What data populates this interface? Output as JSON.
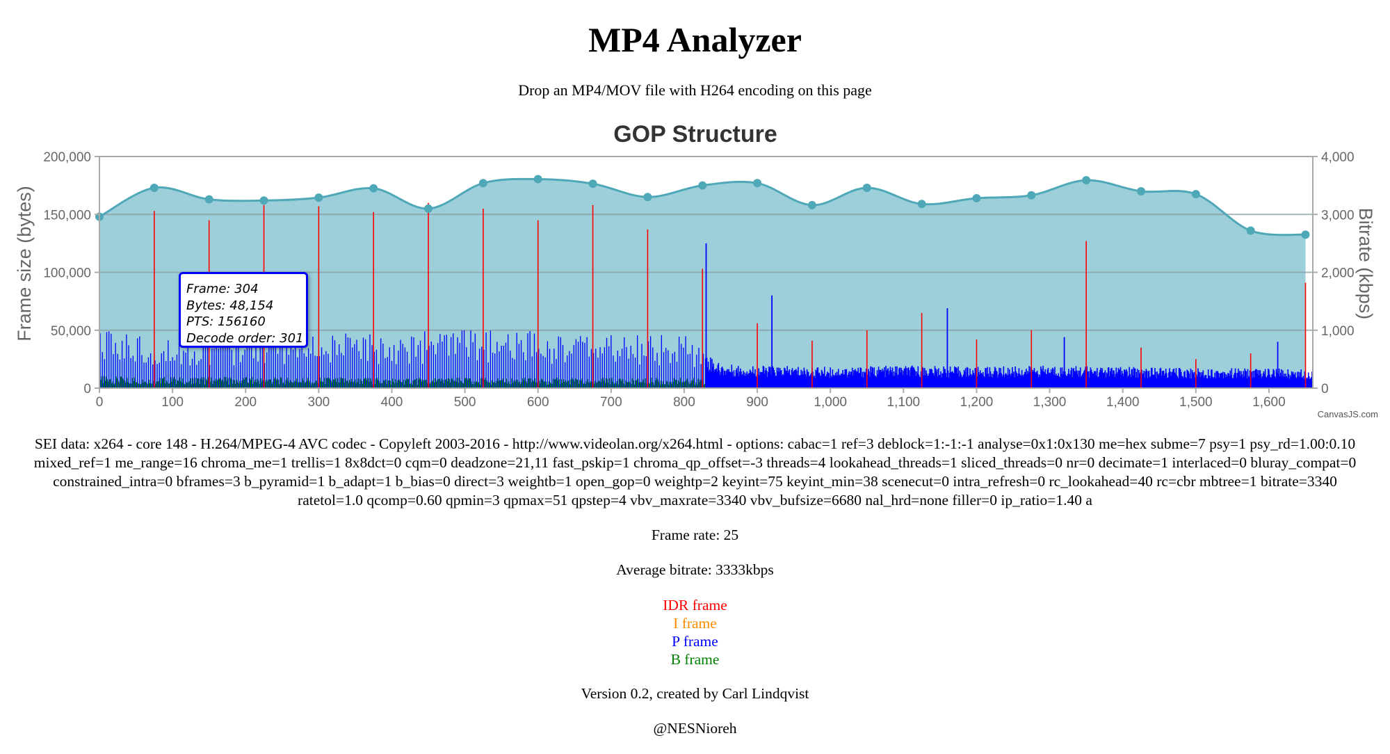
{
  "header": {
    "title": "MP4 Analyzer",
    "subtitle": "Drop an MP4/MOV file with H264 encoding on this page"
  },
  "chart_data": {
    "type": "bar",
    "title": "GOP Structure",
    "ylabel": "Frame size (bytes)",
    "y2label": "Bitrate (kbps)",
    "xlim": [
      0,
      1660
    ],
    "ylim": [
      0,
      200000
    ],
    "y2lim": [
      0,
      4000
    ],
    "x_ticks": [
      0,
      100,
      200,
      300,
      400,
      500,
      600,
      700,
      800,
      900,
      1000,
      1100,
      1200,
      1300,
      1400,
      1500,
      1600
    ],
    "x_tick_labels": [
      "0",
      "100",
      "200",
      "300",
      "400",
      "500",
      "600",
      "700",
      "800",
      "900",
      "1,000",
      "1,100",
      "1,200",
      "1,300",
      "1,400",
      "1,500",
      "1,600"
    ],
    "y_tick_labels": [
      "0",
      "50,000",
      "100,000",
      "150,000",
      "200,000"
    ],
    "y2_tick_labels": [
      "0",
      "1,000",
      "2,000",
      "3,000",
      "4,000"
    ],
    "grid": true,
    "watermark": "CanvasJS.com",
    "colors": {
      "idr": "#ff0000",
      "i": "#ff8c00",
      "p": "#0000ff",
      "b": "#008000",
      "bitrate_line": "#4fa8b8",
      "bitrate_fill": "#9dcfda"
    },
    "series": [
      {
        "name": "IDR frame",
        "kind": "bar",
        "points": [
          {
            "x": 75,
            "y": 153000
          },
          {
            "x": 150,
            "y": 145000
          },
          {
            "x": 225,
            "y": 158000
          },
          {
            "x": 300,
            "y": 157000
          },
          {
            "x": 375,
            "y": 152000
          },
          {
            "x": 450,
            "y": 160000
          },
          {
            "x": 525,
            "y": 155000
          },
          {
            "x": 600,
            "y": 145000
          },
          {
            "x": 675,
            "y": 158000
          },
          {
            "x": 750,
            "y": 137000
          },
          {
            "x": 825,
            "y": 103000
          },
          {
            "x": 900,
            "y": 56000
          },
          {
            "x": 975,
            "y": 41000
          },
          {
            "x": 1050,
            "y": 50000
          },
          {
            "x": 1125,
            "y": 65000
          },
          {
            "x": 1200,
            "y": 42000
          },
          {
            "x": 1275,
            "y": 50000
          },
          {
            "x": 1350,
            "y": 127000
          },
          {
            "x": 1425,
            "y": 35000
          },
          {
            "x": 1500,
            "y": 25000
          },
          {
            "x": 1575,
            "y": 30000
          },
          {
            "x": 1650,
            "y": 91000
          }
        ]
      },
      {
        "name": "P frame",
        "kind": "bar",
        "envelope": [
          {
            "x": 0,
            "y": 45000
          },
          {
            "x": 100,
            "y": 43000
          },
          {
            "x": 200,
            "y": 44000
          },
          {
            "x": 300,
            "y": 43000
          },
          {
            "x": 400,
            "y": 44000
          },
          {
            "x": 500,
            "y": 46000
          },
          {
            "x": 600,
            "y": 45000
          },
          {
            "x": 700,
            "y": 44000
          },
          {
            "x": 800,
            "y": 42000
          },
          {
            "x": 850,
            "y": 18000
          },
          {
            "x": 900,
            "y": 17000
          },
          {
            "x": 1000,
            "y": 16000
          },
          {
            "x": 1100,
            "y": 17000
          },
          {
            "x": 1200,
            "y": 16000
          },
          {
            "x": 1300,
            "y": 17000
          },
          {
            "x": 1400,
            "y": 16000
          },
          {
            "x": 1500,
            "y": 15000
          },
          {
            "x": 1600,
            "y": 15000
          },
          {
            "x": 1660,
            "y": 14000
          }
        ],
        "peaks": [
          {
            "x": 830,
            "y": 125000
          },
          {
            "x": 920,
            "y": 80000
          },
          {
            "x": 1160,
            "y": 69000
          },
          {
            "x": 1320,
            "y": 44000
          },
          {
            "x": 1612,
            "y": 40000
          }
        ]
      },
      {
        "name": "B frame",
        "kind": "bar",
        "envelope": [
          {
            "x": 0,
            "y": 8000
          },
          {
            "x": 400,
            "y": 7000
          },
          {
            "x": 800,
            "y": 7000
          },
          {
            "x": 1200,
            "y": 6000
          },
          {
            "x": 1660,
            "y": 5000
          }
        ]
      },
      {
        "name": "Bitrate",
        "kind": "spline-area",
        "axis": "y2",
        "points": [
          {
            "x": 0,
            "y": 2960
          },
          {
            "x": 75,
            "y": 3460
          },
          {
            "x": 150,
            "y": 3260
          },
          {
            "x": 225,
            "y": 3240
          },
          {
            "x": 300,
            "y": 3290
          },
          {
            "x": 375,
            "y": 3450
          },
          {
            "x": 450,
            "y": 3100
          },
          {
            "x": 525,
            "y": 3540
          },
          {
            "x": 600,
            "y": 3610
          },
          {
            "x": 675,
            "y": 3530
          },
          {
            "x": 750,
            "y": 3300
          },
          {
            "x": 825,
            "y": 3500
          },
          {
            "x": 900,
            "y": 3540
          },
          {
            "x": 975,
            "y": 3160
          },
          {
            "x": 1050,
            "y": 3460
          },
          {
            "x": 1125,
            "y": 3180
          },
          {
            "x": 1200,
            "y": 3280
          },
          {
            "x": 1275,
            "y": 3330
          },
          {
            "x": 1350,
            "y": 3590
          },
          {
            "x": 1425,
            "y": 3400
          },
          {
            "x": 1500,
            "y": 3350
          },
          {
            "x": 1575,
            "y": 2720
          },
          {
            "x": 1650,
            "y": 2650
          }
        ]
      }
    ],
    "tooltip": {
      "frame_label": "Frame: 304",
      "bytes_label": "Bytes: 48,154",
      "pts_label": "PTS: 156160",
      "decode_label": "Decode order: 301"
    }
  },
  "info": {
    "sei": "SEI data: x264 - core 148 - H.264/MPEG-4 AVC codec - Copyleft 2003-2016 - http://www.videolan.org/x264.html - options: cabac=1 ref=3 deblock=1:-1:-1 analyse=0x1:0x130 me=hex subme=7 psy=1 psy_rd=1.00:0.10 mixed_ref=1 me_range=16 chroma_me=1 trellis=1 8x8dct=0 cqm=0 deadzone=21,11 fast_pskip=1 chroma_qp_offset=-3 threads=4 lookahead_threads=1 sliced_threads=0 nr=0 decimate=1 interlaced=0 bluray_compat=0 constrained_intra=0 bframes=3 b_pyramid=1 b_adapt=1 b_bias=0 direct=3 weightb=1 open_gop=0 weightp=2 keyint=75 keyint_min=38 scenecut=0 intra_refresh=0 rc_lookahead=40 rc=cbr mbtree=1 bitrate=3340 ratetol=1.0 qcomp=0.60 qpmin=3 qpmax=51 qpstep=4 vbv_maxrate=3340 vbv_bufsize=6680 nal_hrd=none filler=0 ip_ratio=1.40 a",
    "frame_rate": "Frame rate: 25",
    "avg_bitrate": "Average bitrate: 3333kbps"
  },
  "legend": {
    "idr": "IDR frame",
    "i": "I frame",
    "p": "P frame",
    "b": "B frame"
  },
  "footer": {
    "version": "Version 0.2, created by Carl Lindqvist",
    "handle": "@NESNioreh"
  }
}
